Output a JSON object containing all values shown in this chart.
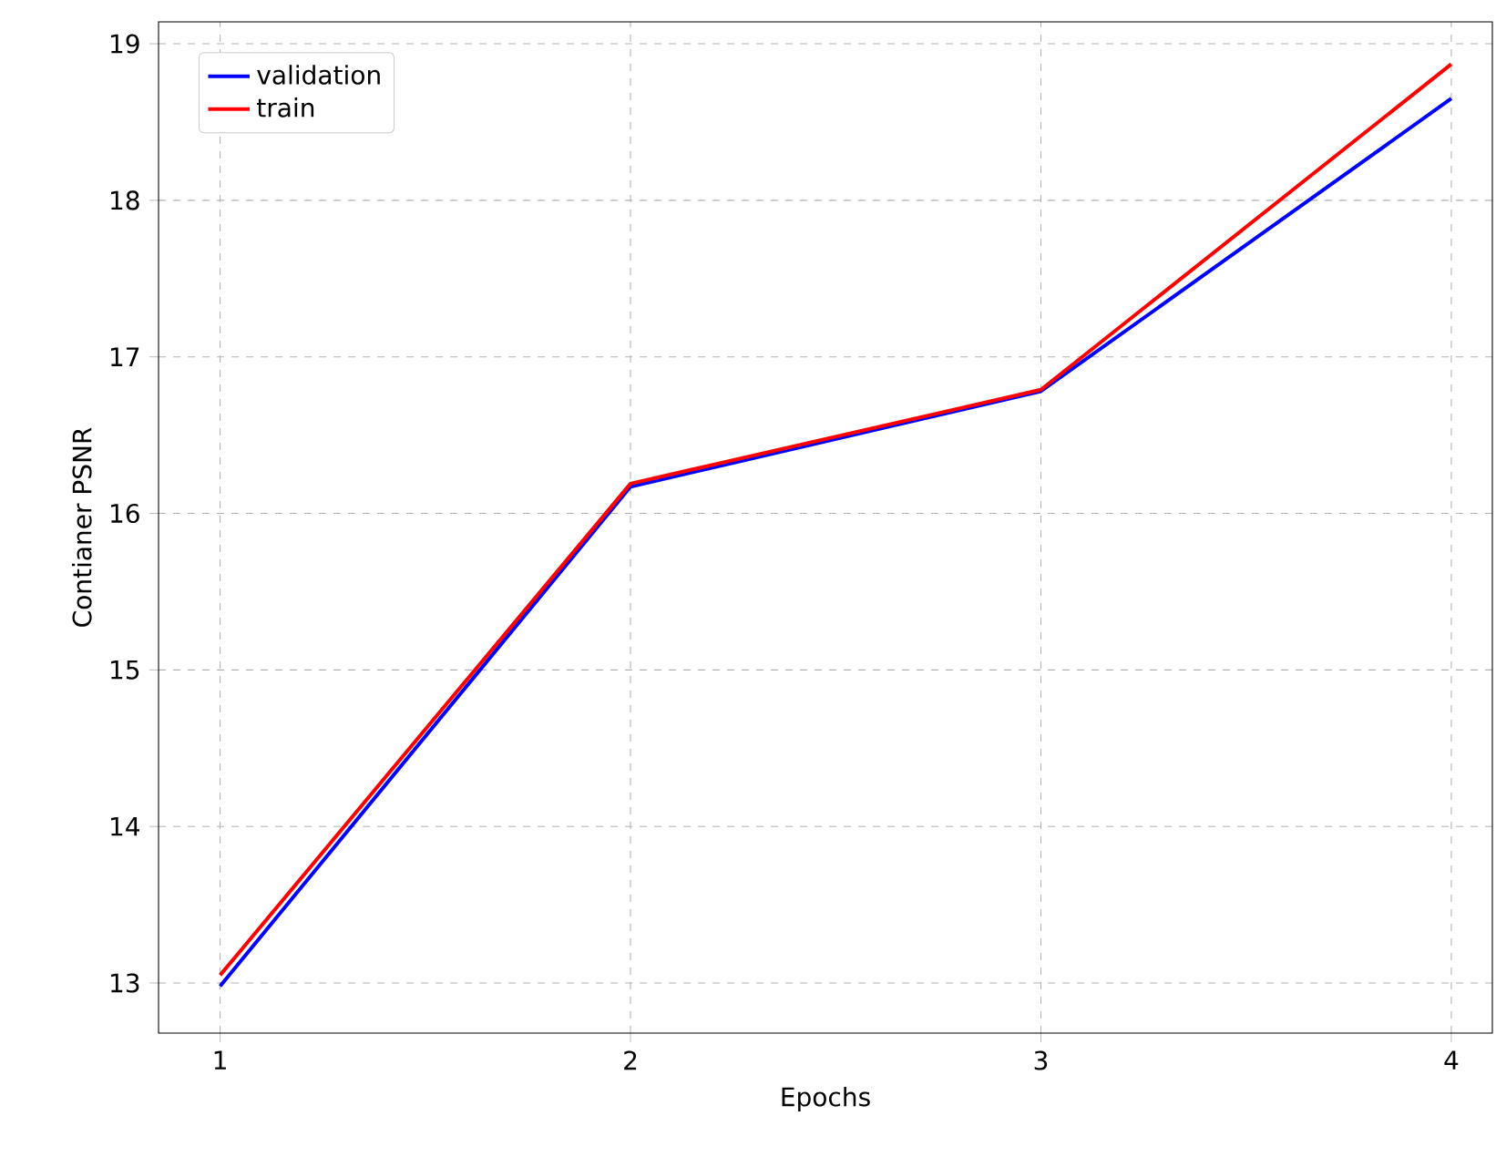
{
  "chart_data": {
    "type": "line",
    "xlabel": "Epochs",
    "ylabel": "Contianer PSNR",
    "x": [
      1,
      2,
      3,
      4
    ],
    "series": [
      {
        "name": "validation",
        "color": "#0000ff",
        "values": [
          12.98,
          16.17,
          16.78,
          18.65
        ]
      },
      {
        "name": "train",
        "color": "#ff0000",
        "values": [
          13.05,
          16.19,
          16.79,
          18.87
        ]
      }
    ],
    "xlim": [
      0.85,
      4.1
    ],
    "ylim": [
      12.68,
      19.14
    ],
    "xticks": [
      1,
      2,
      3,
      4
    ],
    "yticks": [
      13,
      14,
      15,
      16,
      17,
      18,
      19
    ],
    "grid": true,
    "legend": "top left",
    "marker": "none",
    "line_style": "solid"
  }
}
